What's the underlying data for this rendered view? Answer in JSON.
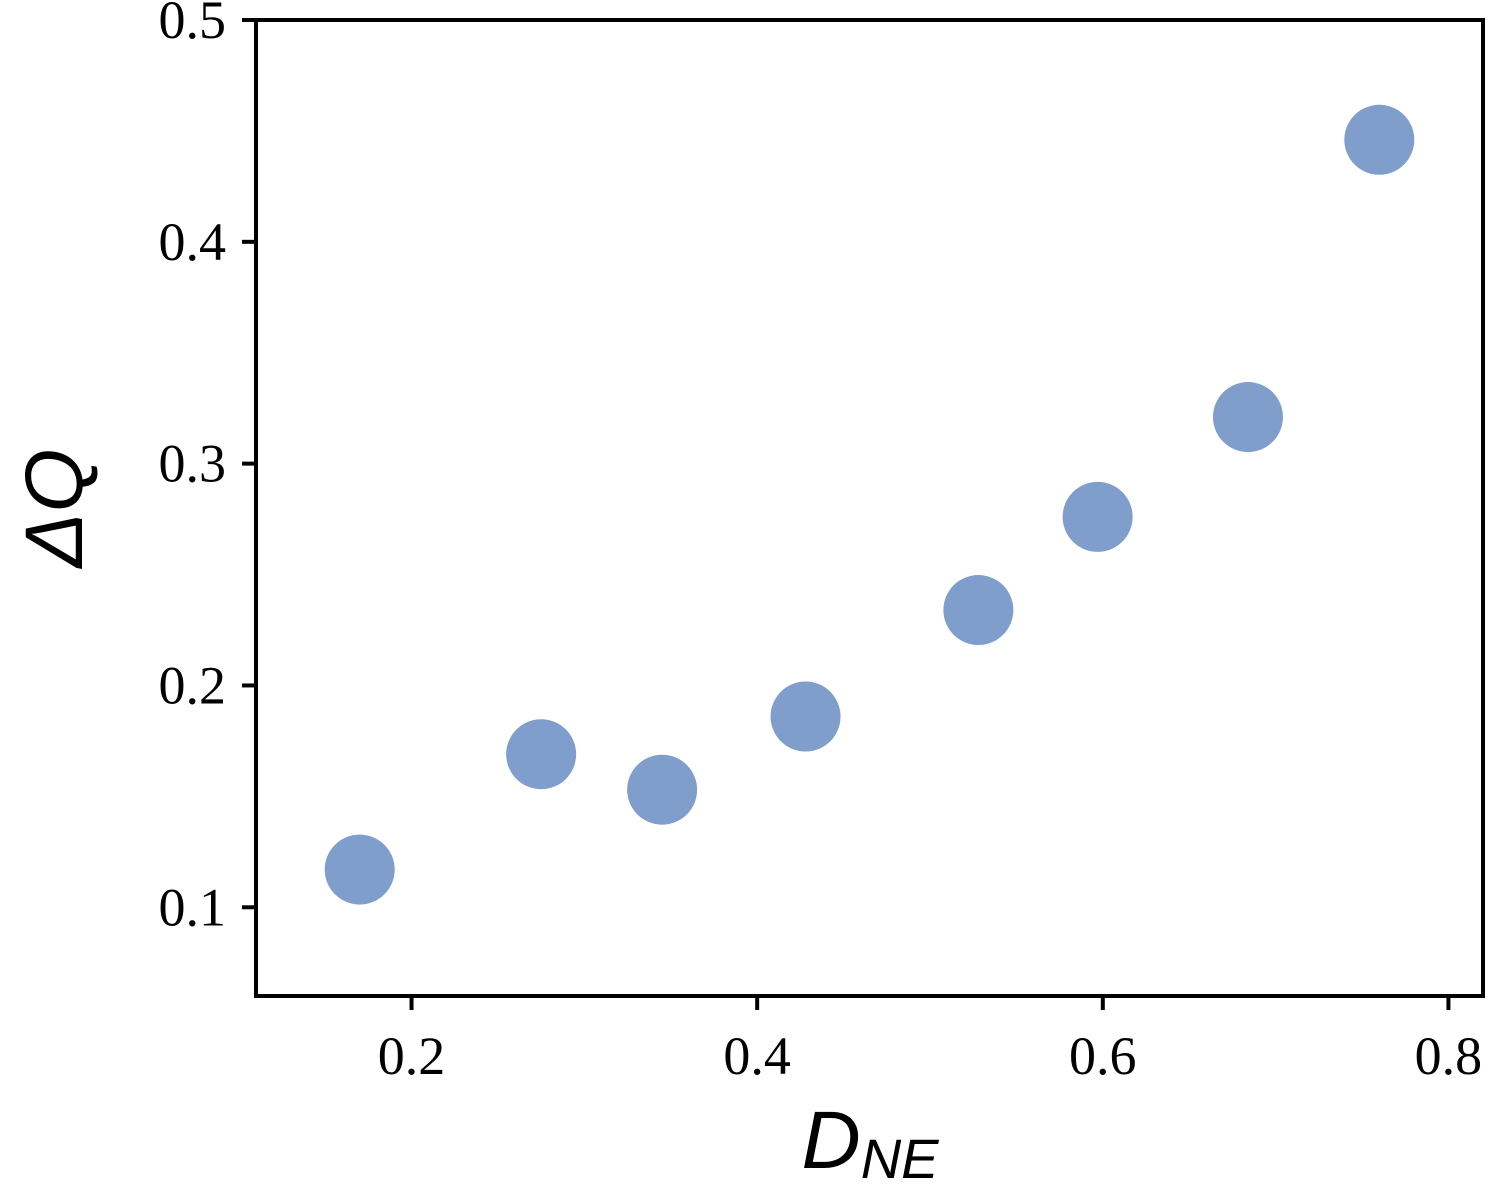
{
  "chart_data": {
    "type": "scatter",
    "title": "",
    "xlabel": {
      "main": "D",
      "sub": "NE"
    },
    "ylabel": "ΔQ",
    "xlim": [
      0.11,
      0.82
    ],
    "ylim": [
      0.06,
      0.5
    ],
    "xticks": [
      0.2,
      0.4,
      0.6,
      0.8
    ],
    "xtick_labels": [
      "0.2",
      "0.4",
      "0.6",
      "0.8"
    ],
    "yticks": [
      0.1,
      0.2,
      0.3,
      0.4,
      0.5
    ],
    "ytick_labels": [
      "0.1",
      "0.2",
      "0.3",
      "0.4",
      "0.5"
    ],
    "grid": false,
    "marker_color": "#7f9ecb",
    "points": [
      {
        "x": 0.17,
        "y": 0.117
      },
      {
        "x": 0.275,
        "y": 0.169
      },
      {
        "x": 0.345,
        "y": 0.153
      },
      {
        "x": 0.428,
        "y": 0.186
      },
      {
        "x": 0.528,
        "y": 0.234
      },
      {
        "x": 0.597,
        "y": 0.276
      },
      {
        "x": 0.684,
        "y": 0.321
      },
      {
        "x": 0.76,
        "y": 0.446
      }
    ]
  }
}
